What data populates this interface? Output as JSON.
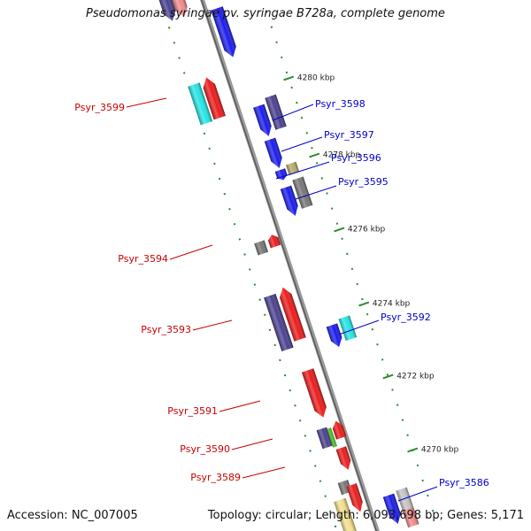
{
  "title": "Pseudomonas syringae pv. syringae B728a, complete genome",
  "footer": {
    "accession": "Accession: NC_007005",
    "summary": "Topology: circular; Length: 6,093,698 bp; Genes: 5,171"
  },
  "colors": {
    "backbone": "#7a7a7a",
    "tick": "#2e8b2e",
    "forward_label": "#0000cc",
    "reverse_label": "#cc0000",
    "feature_blue": "#1a1aee",
    "feature_red": "#ee1a1a",
    "feature_navy": "#4a4090",
    "feature_cyan": "#22e6e6",
    "feature_gray": "#777777",
    "feature_khaki": "#b5ab6a",
    "feature_pale": "#f2e08c",
    "feature_green": "#44bb22",
    "feature_silver": "#c4c4c4",
    "feature_pink": "#f08a8a"
  },
  "ticks": [
    "4270 kbp",
    "4272 kbp",
    "4274 kbp",
    "4276 kbp",
    "4278 kbp",
    "4280 kbp"
  ],
  "genes": [
    {
      "name": "Psyr_3599",
      "strand": "reverse"
    },
    {
      "name": "Psyr_3598",
      "strand": "forward"
    },
    {
      "name": "Psyr_3597",
      "strand": "forward"
    },
    {
      "name": "Psyr_3596",
      "strand": "forward"
    },
    {
      "name": "Psyr_3595",
      "strand": "forward"
    },
    {
      "name": "Psyr_3594",
      "strand": "reverse"
    },
    {
      "name": "Psyr_3593",
      "strand": "reverse"
    },
    {
      "name": "Psyr_3592",
      "strand": "forward"
    },
    {
      "name": "Psyr_3591",
      "strand": "reverse"
    },
    {
      "name": "Psyr_3590",
      "strand": "reverse"
    },
    {
      "name": "Psyr_3589",
      "strand": "reverse"
    },
    {
      "name": "Psyr_3586",
      "strand": "forward"
    }
  ]
}
